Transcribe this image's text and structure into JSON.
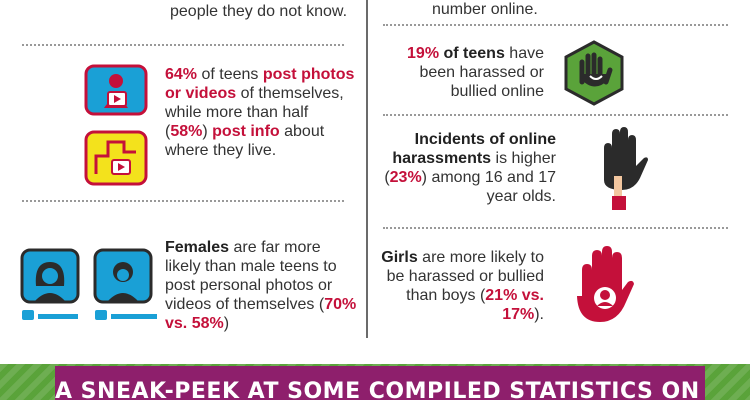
{
  "left": {
    "top_fragment": "people they do not know.",
    "block1": {
      "pct1": "64%",
      "t1": " of teens ",
      "b1": "post photos or videos",
      "t2": " of themselves, while more than half (",
      "pct2": "58%",
      "t3": ") ",
      "b2": "post info",
      "t4": " about where they live."
    },
    "block2": {
      "b1": "Females",
      "t1": " are far more likely than male teens to post personal photos or videos of themselves (",
      "stat": "70% vs. 58%",
      "t2": ")"
    }
  },
  "right": {
    "top_fragment": "number online.",
    "block1": {
      "pct": "19%",
      "b1": " of teens",
      "t1": " have been harassed or bullied online"
    },
    "block2": {
      "b1": "Incidents of online harassments",
      "t1": " is higher (",
      "pct": "23%",
      "t2": ") among 16 and 17 year olds."
    },
    "block3": {
      "b1": "Girls",
      "t1": " are more likely to be harassed or bullied than boys (",
      "stat": "21% vs. 17%",
      "t2": ")."
    }
  },
  "banner": {
    "text": "A SNEAK-PEEK AT SOME COMPILED STATISTICS ON SEXTING:"
  },
  "colors": {
    "red": "#c4103a",
    "purple": "#8e1f6c",
    "green": "#5aa33a",
    "blue": "#1aa0d6",
    "yellow": "#f3e21c"
  }
}
